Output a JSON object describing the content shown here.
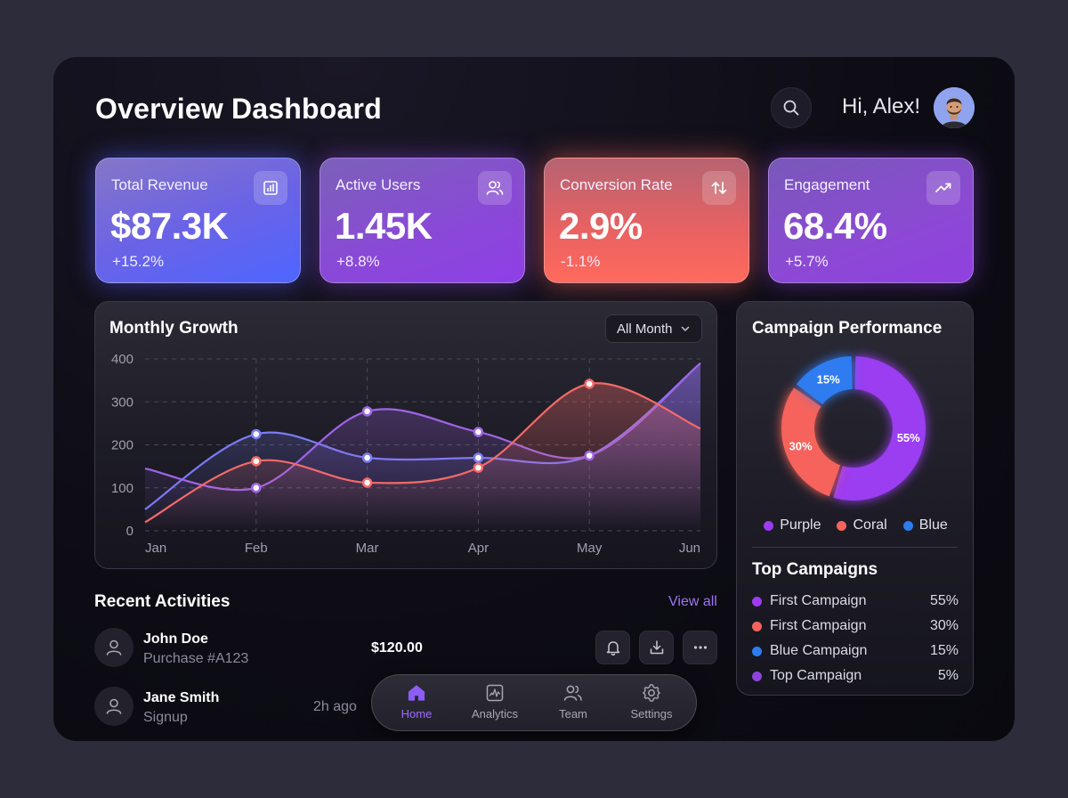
{
  "header": {
    "title": "Overview Dashboard",
    "greeting": "Hi, Alex!",
    "search_icon": "search-icon"
  },
  "kpis": [
    {
      "label": "Total Revenue",
      "value": "$87.3K",
      "delta": "+15.2%",
      "icon": "bar-chart-icon"
    },
    {
      "label": "Active Users",
      "value": "1.45K",
      "delta": "+8.8%",
      "icon": "users-icon"
    },
    {
      "label": "Conversion Rate",
      "value": "2.9%",
      "delta": "-1.1%",
      "icon": "arrows-up-down-icon"
    },
    {
      "label": "Engagement",
      "value": "68.4%",
      "delta": "+5.7%",
      "icon": "trending-up-icon"
    }
  ],
  "growth": {
    "title": "Monthly Growth",
    "filter": "All Month"
  },
  "chart_data": [
    {
      "type": "line",
      "title": "Monthly Growth",
      "x": [
        "Jan",
        "Feb",
        "Mar",
        "Apr",
        "May",
        "Jun"
      ],
      "ylim": [
        0,
        400
      ],
      "yticks": [
        0,
        100,
        200,
        300,
        400
      ],
      "grid": true,
      "series": [
        {
          "color": "#7b7cf7",
          "values": [
            50,
            225,
            170,
            170,
            175,
            390
          ],
          "marker_values": [
            225,
            170
          ]
        },
        {
          "color": "#a064e8",
          "values": [
            145,
            100,
            278,
            230,
            175,
            390
          ],
          "marker_values": [
            100,
            278,
            230,
            175
          ]
        },
        {
          "color": "#f46a68",
          "values": [
            20,
            162,
            112,
            147,
            342,
            238
          ],
          "marker_values": [
            162,
            112,
            147,
            342
          ]
        }
      ]
    },
    {
      "type": "pie",
      "title": "Campaign Performance",
      "categories": [
        "Purple",
        "Coral",
        "Blue"
      ],
      "values": [
        55,
        30,
        15
      ],
      "labels": [
        "55%",
        "30%",
        "15%"
      ],
      "colors": [
        "#9b3cf0",
        "#f5645c",
        "#2d7cf0"
      ]
    }
  ],
  "campaign": {
    "title": "Campaign Performance",
    "legend": [
      {
        "label": "Purple",
        "color": "#9b3cf0"
      },
      {
        "label": "Coral",
        "color": "#f5645c"
      },
      {
        "label": "Blue",
        "color": "#2d7cf0"
      }
    ],
    "top_title": "Top Campaigns",
    "top": [
      {
        "name": "First Campaign",
        "value": "55%",
        "color": "#9b3cf0"
      },
      {
        "name": "First Campaign",
        "value": "30%",
        "color": "#f5645c"
      },
      {
        "name": "Blue Campaign",
        "value": "15%",
        "color": "#2d7cf0"
      },
      {
        "name": "Top Campaign",
        "value": "5%",
        "color": "#8e44d8"
      }
    ]
  },
  "activities": {
    "title": "Recent Activities",
    "view_all": "View all",
    "items": [
      {
        "name": "John Doe",
        "sub": "Purchase #A123",
        "amount": "$120.00"
      },
      {
        "name": "Jane Smith",
        "sub": "Signup",
        "time": "2h ago"
      }
    ]
  },
  "nav": {
    "items": [
      {
        "label": "Home",
        "icon": "home-icon",
        "active": true
      },
      {
        "label": "Analytics",
        "icon": "analytics-icon"
      },
      {
        "label": "Team",
        "icon": "team-icon"
      },
      {
        "label": "Settings",
        "icon": "gear-icon"
      }
    ]
  }
}
